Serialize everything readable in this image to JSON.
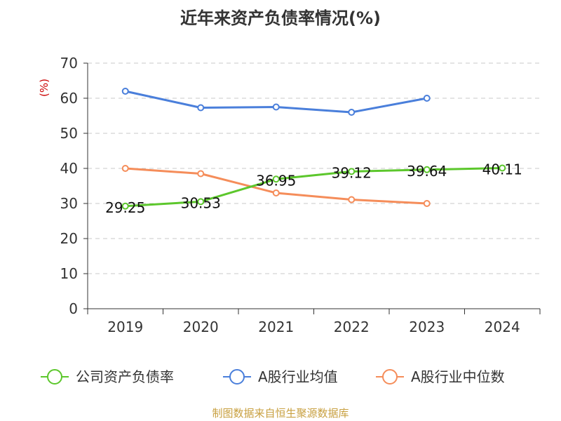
{
  "colors": {
    "company": "#5cc72c",
    "industry_avg": "#4a7fdb",
    "industry_median": "#f58d5a",
    "grid": "#c8c8c8",
    "axis": "#333333",
    "unit": "#cc0000",
    "source": "#c8a040"
  },
  "source_note": "制图数据来自恒生聚源数据库",
  "chart_data": {
    "type": "line",
    "title": "近年来资产负债率情况(%)",
    "ylabel": "(%)",
    "xlabel": "",
    "categories": [
      "2019",
      "2020",
      "2021",
      "2022",
      "2023",
      "2024"
    ],
    "ylim": [
      0,
      70
    ],
    "yticks": [
      "0",
      "10",
      "20",
      "30",
      "40",
      "50",
      "60",
      "70"
    ],
    "grid": true,
    "legend_position": "bottom",
    "series": [
      {
        "name": "公司资产负债率",
        "color_key": "company",
        "values": [
          29.25,
          30.53,
          36.95,
          39.12,
          39.64,
          40.11
        ],
        "labels": [
          "29.25",
          "30.53",
          "36.95",
          "39.12",
          "39.64",
          "40.11"
        ]
      },
      {
        "name": "A股行业均值",
        "color_key": "industry_avg",
        "values": [
          62.0,
          57.3,
          57.5,
          56.0,
          60.0,
          null
        ],
        "labels": []
      },
      {
        "name": "A股行业中位数",
        "color_key": "industry_median",
        "values": [
          40.0,
          38.5,
          33.0,
          31.1,
          30.0,
          null
        ],
        "labels": []
      }
    ]
  }
}
